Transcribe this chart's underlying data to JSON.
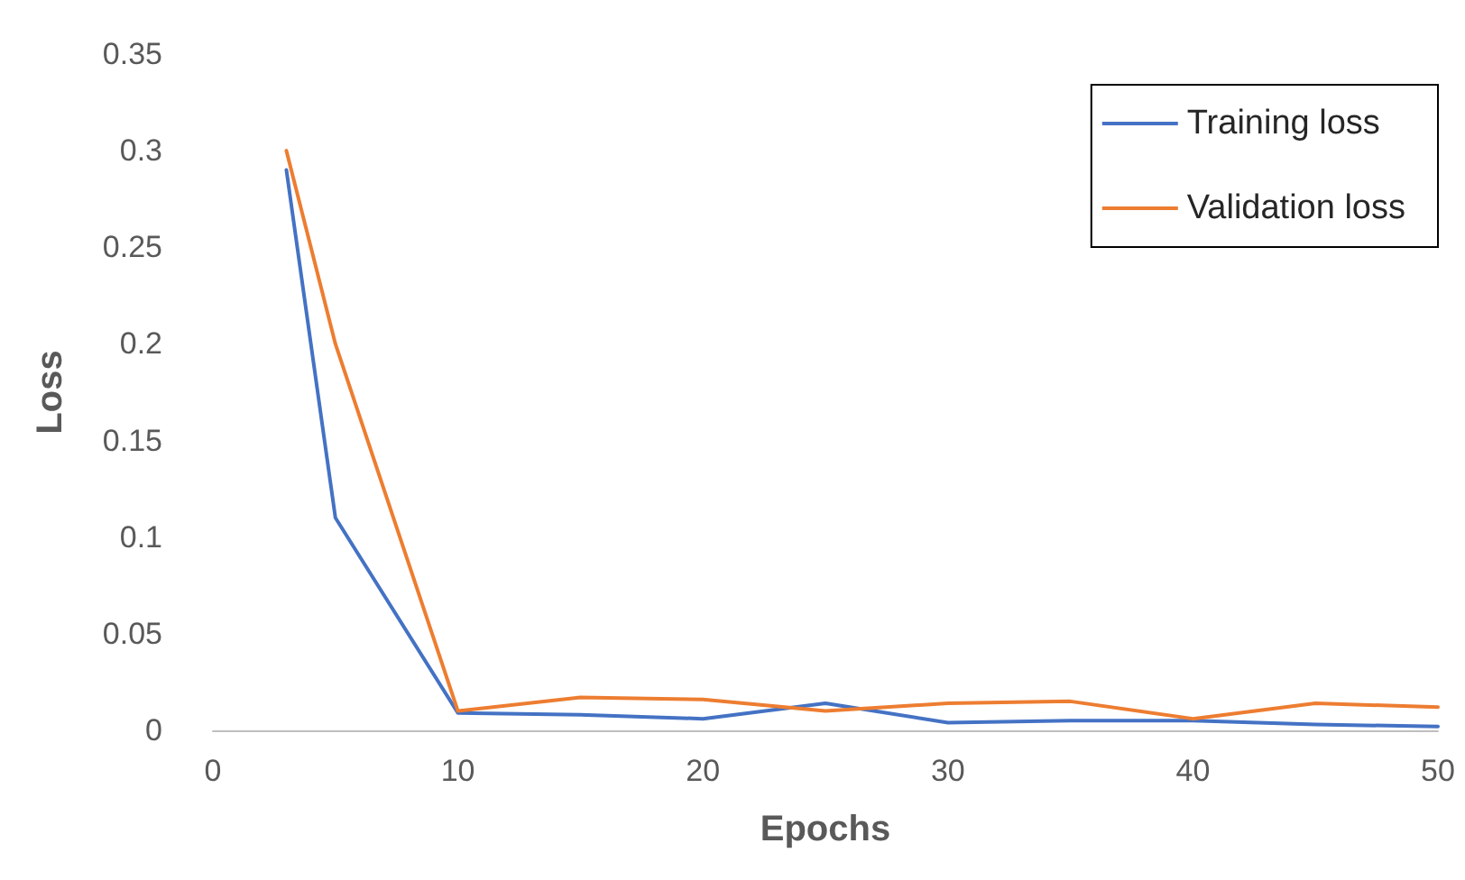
{
  "chart_data": {
    "type": "line",
    "xlabel": "Epochs",
    "ylabel": "Loss",
    "x": [
      3,
      5,
      10,
      15,
      20,
      25,
      30,
      35,
      40,
      45,
      50
    ],
    "series": [
      {
        "name": "Training loss",
        "color": "#4472c4",
        "values": [
          0.29,
          0.11,
          0.009,
          0.008,
          0.006,
          0.014,
          0.004,
          0.005,
          0.005,
          0.003,
          0.002
        ]
      },
      {
        "name": "Validation loss",
        "color": "#ed7d31",
        "values": [
          0.3,
          0.2,
          0.01,
          0.017,
          0.016,
          0.01,
          0.014,
          0.015,
          0.006,
          0.014,
          0.012
        ]
      }
    ],
    "xlim": [
      0,
      50
    ],
    "xticks": [
      0,
      10,
      20,
      30,
      40,
      50
    ],
    "ylim": [
      0,
      0.35
    ],
    "yticks": [
      0,
      0.05,
      0.1,
      0.15,
      0.2,
      0.25,
      0.3,
      0.35
    ],
    "grid": false,
    "legend": "top right",
    "marker": "none",
    "line_style": "solid"
  }
}
